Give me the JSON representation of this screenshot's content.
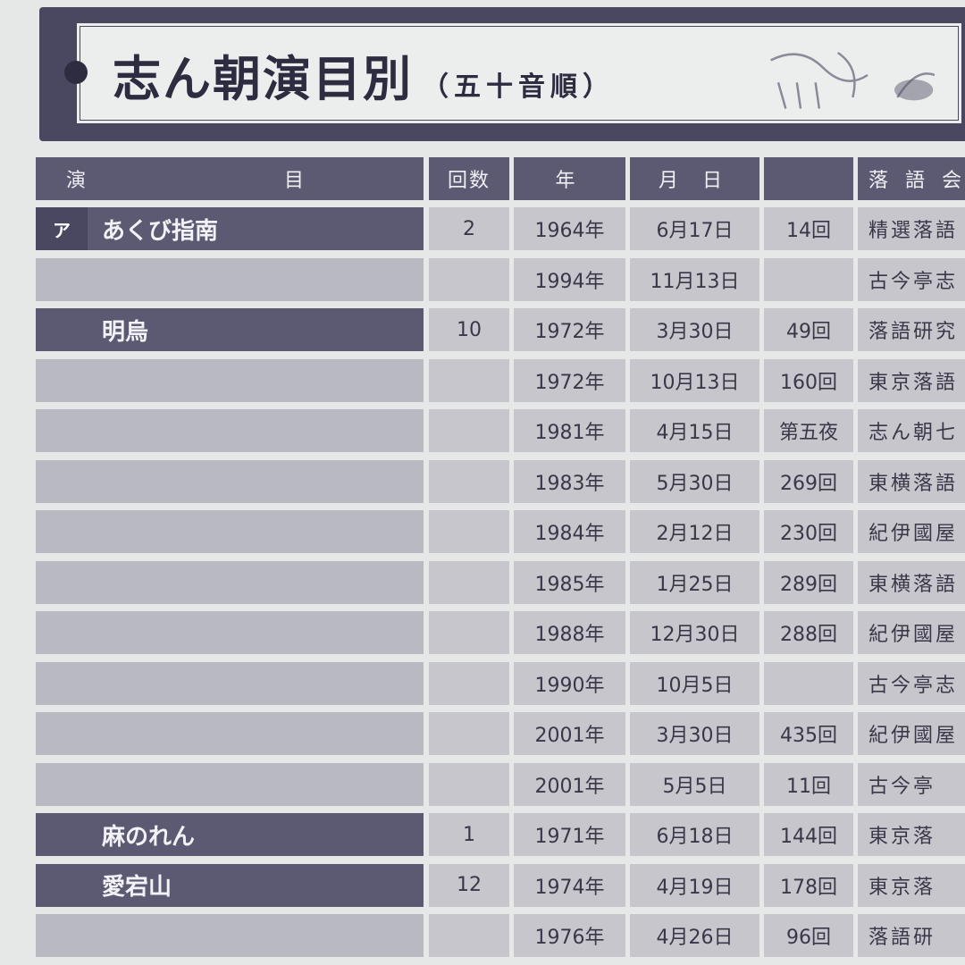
{
  "title": {
    "main": "志ん朝演目別",
    "sub": "（五十音順）"
  },
  "table": {
    "headers": [
      "演　目",
      "回数",
      "年",
      "月 日",
      "",
      "落 語 会"
    ],
    "section_kana": "ア",
    "rows": [
      {
        "title": "あくび指南",
        "count": "2",
        "year": "1964年",
        "date": "6月17日",
        "num": "14回",
        "venue": "精選落語"
      },
      {
        "title": "",
        "count": "",
        "year": "1994年",
        "date": "11月13日",
        "num": "",
        "venue": "古今亭志"
      },
      {
        "title": "明烏",
        "count": "10",
        "year": "1972年",
        "date": "3月30日",
        "num": "49回",
        "venue": "落語研究"
      },
      {
        "title": "",
        "count": "",
        "year": "1972年",
        "date": "10月13日",
        "num": "160回",
        "venue": "東京落語"
      },
      {
        "title": "",
        "count": "",
        "year": "1981年",
        "date": "4月15日",
        "num": "第五夜",
        "venue": "志ん朝七"
      },
      {
        "title": "",
        "count": "",
        "year": "1983年",
        "date": "5月30日",
        "num": "269回",
        "venue": "東横落語"
      },
      {
        "title": "",
        "count": "",
        "year": "1984年",
        "date": "2月12日",
        "num": "230回",
        "venue": "紀伊國屋"
      },
      {
        "title": "",
        "count": "",
        "year": "1985年",
        "date": "1月25日",
        "num": "289回",
        "venue": "東横落語"
      },
      {
        "title": "",
        "count": "",
        "year": "1988年",
        "date": "12月30日",
        "num": "288回",
        "venue": "紀伊國屋"
      },
      {
        "title": "",
        "count": "",
        "year": "1990年",
        "date": "10月5日",
        "num": "",
        "venue": "古今亭志"
      },
      {
        "title": "",
        "count": "",
        "year": "2001年",
        "date": "3月30日",
        "num": "435回",
        "venue": "紀伊國屋"
      },
      {
        "title": "",
        "count": "",
        "year": "2001年",
        "date": "5月5日",
        "num": "11回",
        "venue": "古今亭"
      },
      {
        "title": "麻のれん",
        "count": "1",
        "year": "1971年",
        "date": "6月18日",
        "num": "144回",
        "venue": "東京落"
      },
      {
        "title": "愛宕山",
        "count": "12",
        "year": "1974年",
        "date": "4月19日",
        "num": "178回",
        "venue": "東京落"
      },
      {
        "title": "",
        "count": "",
        "year": "1976年",
        "date": "4月26日",
        "num": "96回",
        "venue": "落語研"
      }
    ]
  }
}
